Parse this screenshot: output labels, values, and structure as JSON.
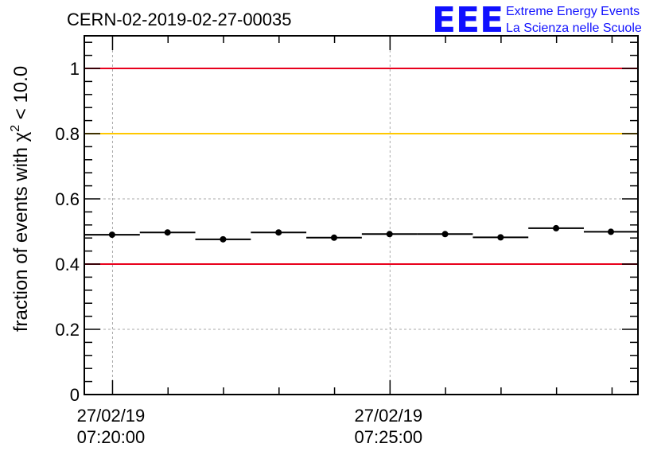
{
  "header": {
    "run_title": "CERN-02-2019-02-27-00035",
    "logo_text": "EEE",
    "logo_line1": "Extreme Energy Events",
    "logo_line2": "La Scienza nelle Scuole",
    "logo_color": "#1010ff"
  },
  "chart_data": {
    "type": "scatter",
    "title": "CERN-02-2019-02-27-00035",
    "ylabel_prefix": "fraction of events with ",
    "ylabel_chi": "χ",
    "ylabel_sup": "2",
    "ylabel_suffix": " < 10.0",
    "xlabel": "",
    "x_unit": "seconds since 27/02/19 07:20:00",
    "xlim": [
      -30.5,
      568
    ],
    "ylim": [
      0,
      1.1
    ],
    "y_ticks": [
      0,
      0.2,
      0.4,
      0.6,
      0.8,
      1
    ],
    "y_tick_labels": [
      "0",
      "0.2",
      "0.4",
      "0.6",
      "0.8",
      "1"
    ],
    "x_ticks": [
      {
        "x": 0,
        "date": "27/02/19",
        "time": "07:20:00"
      },
      {
        "x": 300,
        "date": "27/02/19",
        "time": "07:25:00"
      }
    ],
    "grid": true,
    "threshold_lines": [
      {
        "y": 1.0,
        "color": "#e8001c"
      },
      {
        "y": 0.8,
        "color": "#ffc800"
      },
      {
        "y": 0.4,
        "color": "#e8001c"
      }
    ],
    "series": [
      {
        "points": [
          {
            "x": -30.5,
            "x2": 29.5,
            "y": 0.49,
            "err": 0.006
          },
          {
            "x": 29.5,
            "x2": 89.5,
            "y": 0.497,
            "err": 0.006
          },
          {
            "x": 89.5,
            "x2": 149.5,
            "y": 0.476,
            "err": 0.006
          },
          {
            "x": 149.5,
            "x2": 209.5,
            "y": 0.497,
            "err": 0.006
          },
          {
            "x": 209.5,
            "x2": 269.5,
            "y": 0.481,
            "err": 0.006
          },
          {
            "x": 269.5,
            "x2": 329.5,
            "y": 0.492,
            "err": 0.006
          },
          {
            "x": 329.5,
            "x2": 389.5,
            "y": 0.492,
            "err": 0.006
          },
          {
            "x": 389.5,
            "x2": 449.5,
            "y": 0.482,
            "err": 0.006
          },
          {
            "x": 449.5,
            "x2": 509.5,
            "y": 0.51,
            "err": 0.006
          },
          {
            "x": 509.5,
            "x2": 568,
            "y": 0.499,
            "err": 0.006
          }
        ]
      }
    ]
  }
}
